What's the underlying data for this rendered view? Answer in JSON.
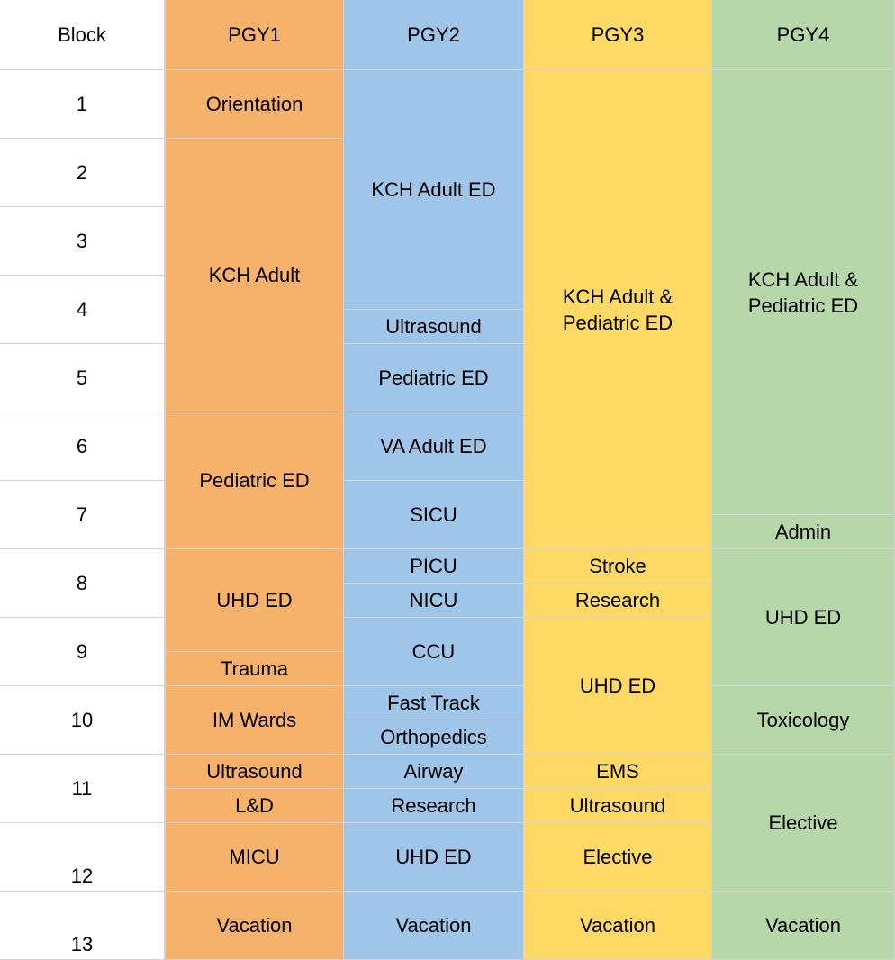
{
  "colors": {
    "block": "#ffffff",
    "PGY1": "#f6b26b",
    "PGY2": "#9fc5e8",
    "PGY3": "#ffd966",
    "PGY4": "#b6d7a8",
    "gridline": "#d4d4d4"
  },
  "header": {
    "block": "Block",
    "pgy1": "PGY1",
    "pgy2": "PGY2",
    "pgy3": "PGY3",
    "pgy4": "PGY4"
  },
  "blocks": [
    {
      "label": "1",
      "align": "center"
    },
    {
      "label": "2",
      "align": "center"
    },
    {
      "label": "3",
      "align": "center"
    },
    {
      "label": "4",
      "align": "center"
    },
    {
      "label": "5",
      "align": "center"
    },
    {
      "label": "6",
      "align": "center"
    },
    {
      "label": "7",
      "align": "center"
    },
    {
      "label": "8",
      "align": "center"
    },
    {
      "label": "9",
      "align": "center"
    },
    {
      "label": "10",
      "align": "center"
    },
    {
      "label": "11",
      "align": "center"
    },
    {
      "label": "12",
      "align": "bottom"
    },
    {
      "label": "13",
      "align": "bottom"
    }
  ],
  "schedule": {
    "PGY1": [
      {
        "start": 1,
        "end": 2,
        "label": "Orientation"
      },
      {
        "start": 2,
        "end": 6,
        "label": "KCH Adult"
      },
      {
        "start": 6,
        "end": 8,
        "label": "Pediatric ED"
      },
      {
        "start": 8,
        "end": 9.5,
        "label": "UHD ED"
      },
      {
        "start": 9.5,
        "end": 10,
        "label": "Trauma"
      },
      {
        "start": 10,
        "end": 11,
        "label": "IM Wards"
      },
      {
        "start": 11,
        "end": 11.5,
        "label": "Ultrasound"
      },
      {
        "start": 11.5,
        "end": 12,
        "label": "L&D"
      },
      {
        "start": 12,
        "end": 13,
        "label": "MICU"
      },
      {
        "start": 13,
        "end": 14,
        "label": "Vacation"
      }
    ],
    "PGY2": [
      {
        "start": 1,
        "end": 4.5,
        "label": "KCH Adult ED"
      },
      {
        "start": 4.5,
        "end": 5,
        "label": "Ultrasound"
      },
      {
        "start": 5,
        "end": 6,
        "label": "Pediatric ED"
      },
      {
        "start": 6,
        "end": 7,
        "label": "VA Adult ED"
      },
      {
        "start": 7,
        "end": 8,
        "label": "SICU"
      },
      {
        "start": 8,
        "end": 8.5,
        "label": "PICU"
      },
      {
        "start": 8.5,
        "end": 9,
        "label": "NICU"
      },
      {
        "start": 9,
        "end": 10,
        "label": "CCU"
      },
      {
        "start": 10,
        "end": 10.5,
        "label": "Fast Track"
      },
      {
        "start": 10.5,
        "end": 11,
        "label": "Orthopedics"
      },
      {
        "start": 11,
        "end": 11.5,
        "label": "Airway"
      },
      {
        "start": 11.5,
        "end": 12,
        "label": "Research"
      },
      {
        "start": 12,
        "end": 13,
        "label": "UHD ED"
      },
      {
        "start": 13,
        "end": 14,
        "label": "Vacation"
      }
    ],
    "PGY3": [
      {
        "start": 1,
        "end": 8,
        "label": "KCH Adult &\nPediatric ED"
      },
      {
        "start": 8,
        "end": 8.5,
        "label": "Stroke"
      },
      {
        "start": 8.5,
        "end": 9,
        "label": "Research"
      },
      {
        "start": 9,
        "end": 11,
        "label": "UHD ED"
      },
      {
        "start": 11,
        "end": 11.5,
        "label": "EMS"
      },
      {
        "start": 11.5,
        "end": 12,
        "label": "Ultrasound"
      },
      {
        "start": 12,
        "end": 13,
        "label": "Elective"
      },
      {
        "start": 13,
        "end": 14,
        "label": "Vacation"
      }
    ],
    "PGY4": [
      {
        "start": 1,
        "end": 7.5,
        "label": "KCH Adult &\nPediatric ED"
      },
      {
        "start": 7.5,
        "end": 8,
        "label": "Admin"
      },
      {
        "start": 8,
        "end": 10,
        "label": "UHD ED"
      },
      {
        "start": 10,
        "end": 11,
        "label": "Toxicology"
      },
      {
        "start": 11,
        "end": 13,
        "label": "Elective"
      },
      {
        "start": 13,
        "end": 14,
        "label": "Vacation"
      }
    ]
  }
}
